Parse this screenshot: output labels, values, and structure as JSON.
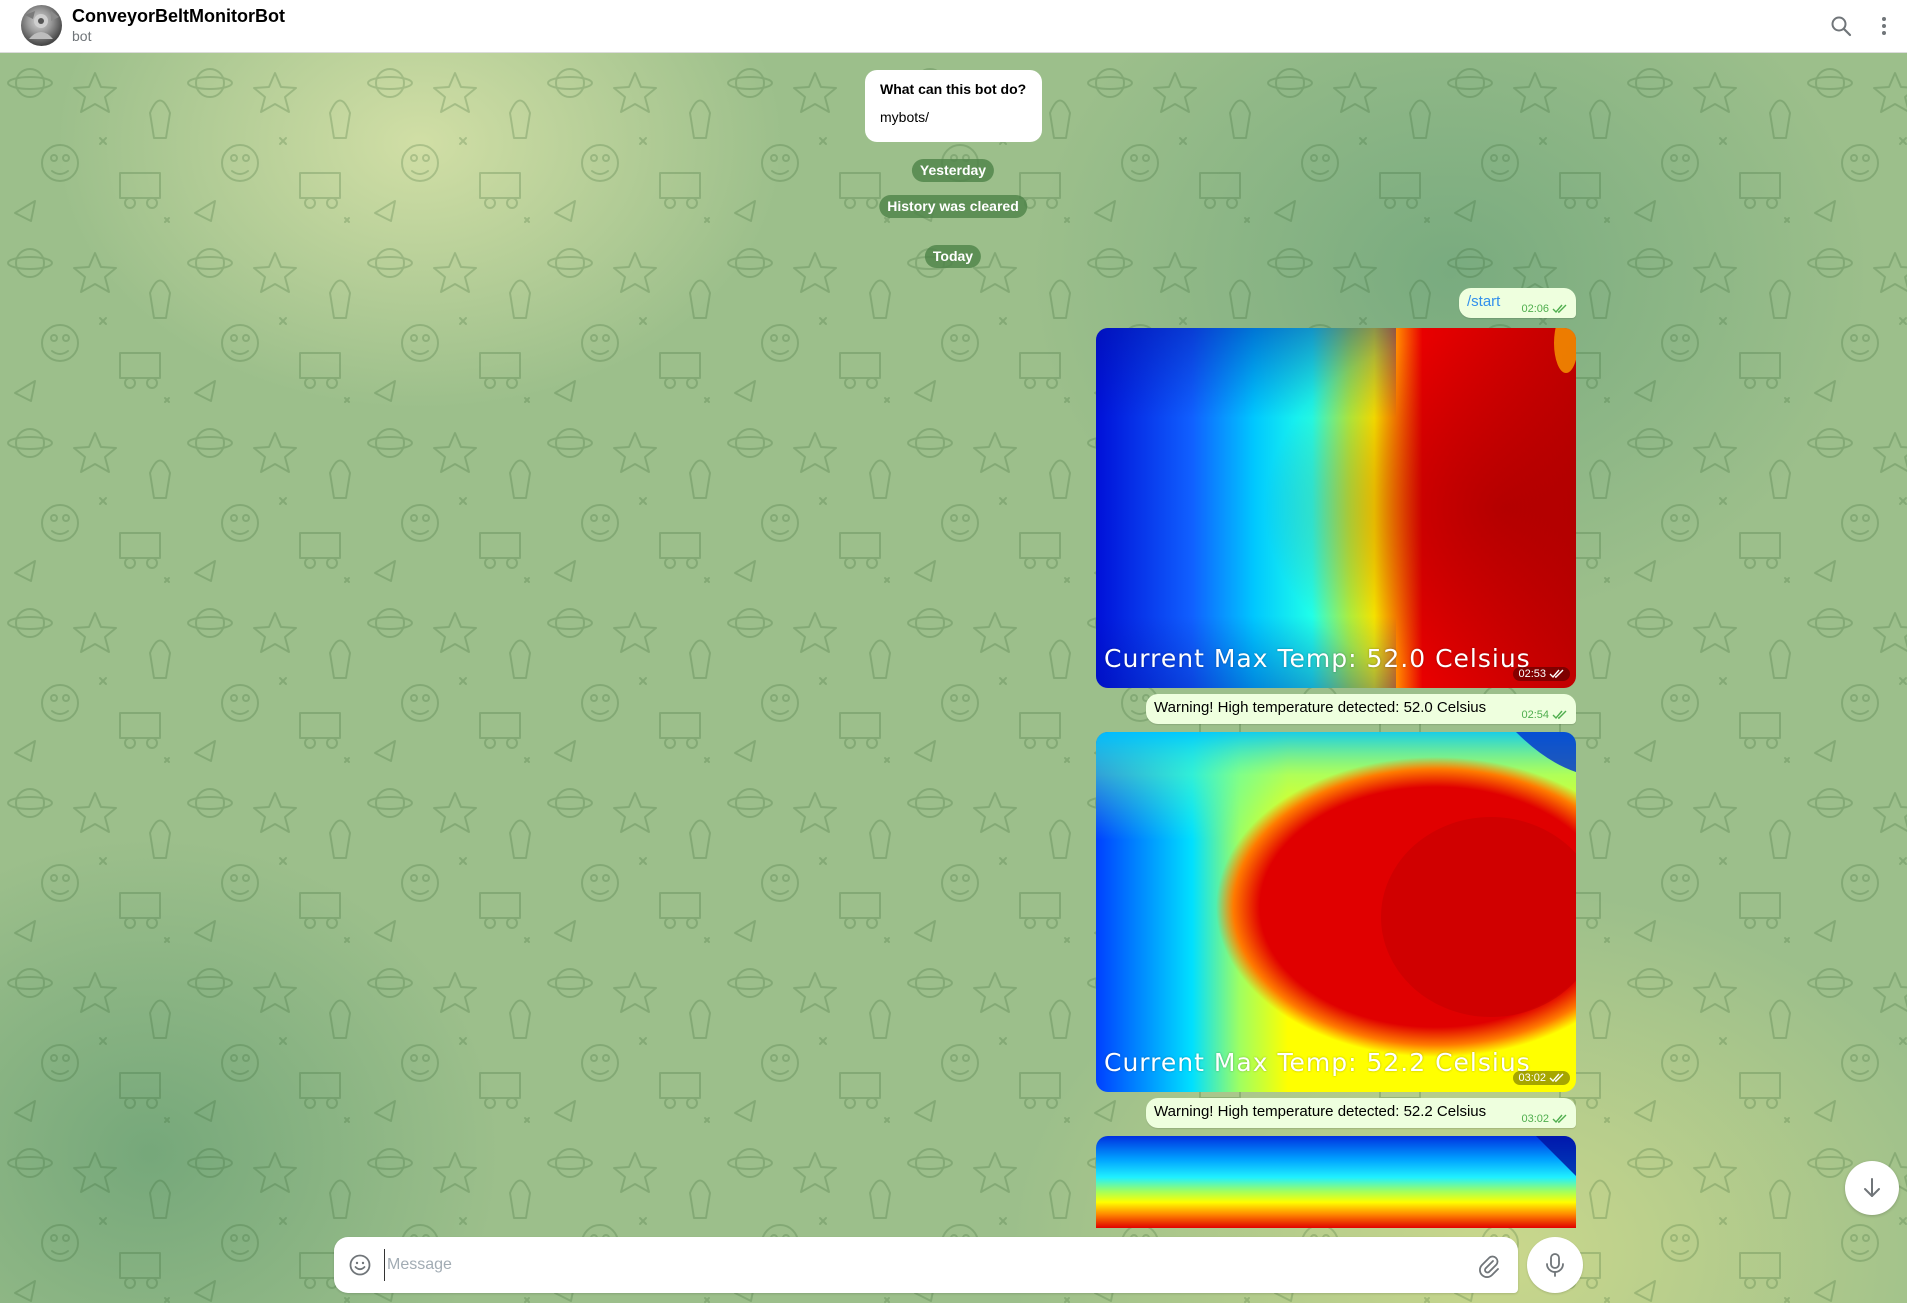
{
  "header": {
    "title": "ConveyorBeltMonitorBot",
    "subtitle": "bot",
    "avatar_icon": "bot-avatar",
    "search_icon": "search-icon",
    "menu_icon": "more-vertical-icon"
  },
  "bot_info": {
    "title": "What can this bot do?",
    "text": "mybots/"
  },
  "service": {
    "yesterday": "Yesterday",
    "history_cleared": "History was cleared",
    "today": "Today"
  },
  "messages": [
    {
      "type": "text",
      "text": "/start",
      "time": "02:06",
      "status": "read"
    },
    {
      "type": "photo",
      "caption": "Current Max Temp: 52.0 Celsius",
      "time": "02:53",
      "status": "read"
    },
    {
      "type": "text",
      "text": "Warning! High temperature detected: 52.0 Celsius",
      "time": "02:54",
      "status": "read"
    },
    {
      "type": "photo",
      "caption": "Current Max Temp: 52.2 Celsius",
      "time": "03:02",
      "status": "read"
    },
    {
      "type": "text",
      "text": "Warning! High temperature detected: 52.2 Celsius",
      "time": "03:02",
      "status": "read"
    },
    {
      "type": "photo",
      "caption": "",
      "time": "",
      "status": "read"
    }
  ],
  "composer": {
    "placeholder": "Message",
    "value": "",
    "emoji_icon": "emoji-icon",
    "attach_icon": "paperclip-icon",
    "mic_icon": "microphone-icon"
  },
  "scroll_down_icon": "arrow-down-icon",
  "colors": {
    "bubble_out": "#eeffde",
    "check_green": "#4fae4e",
    "link_blue": "#3390ec",
    "service_pill": "#4c8246"
  }
}
